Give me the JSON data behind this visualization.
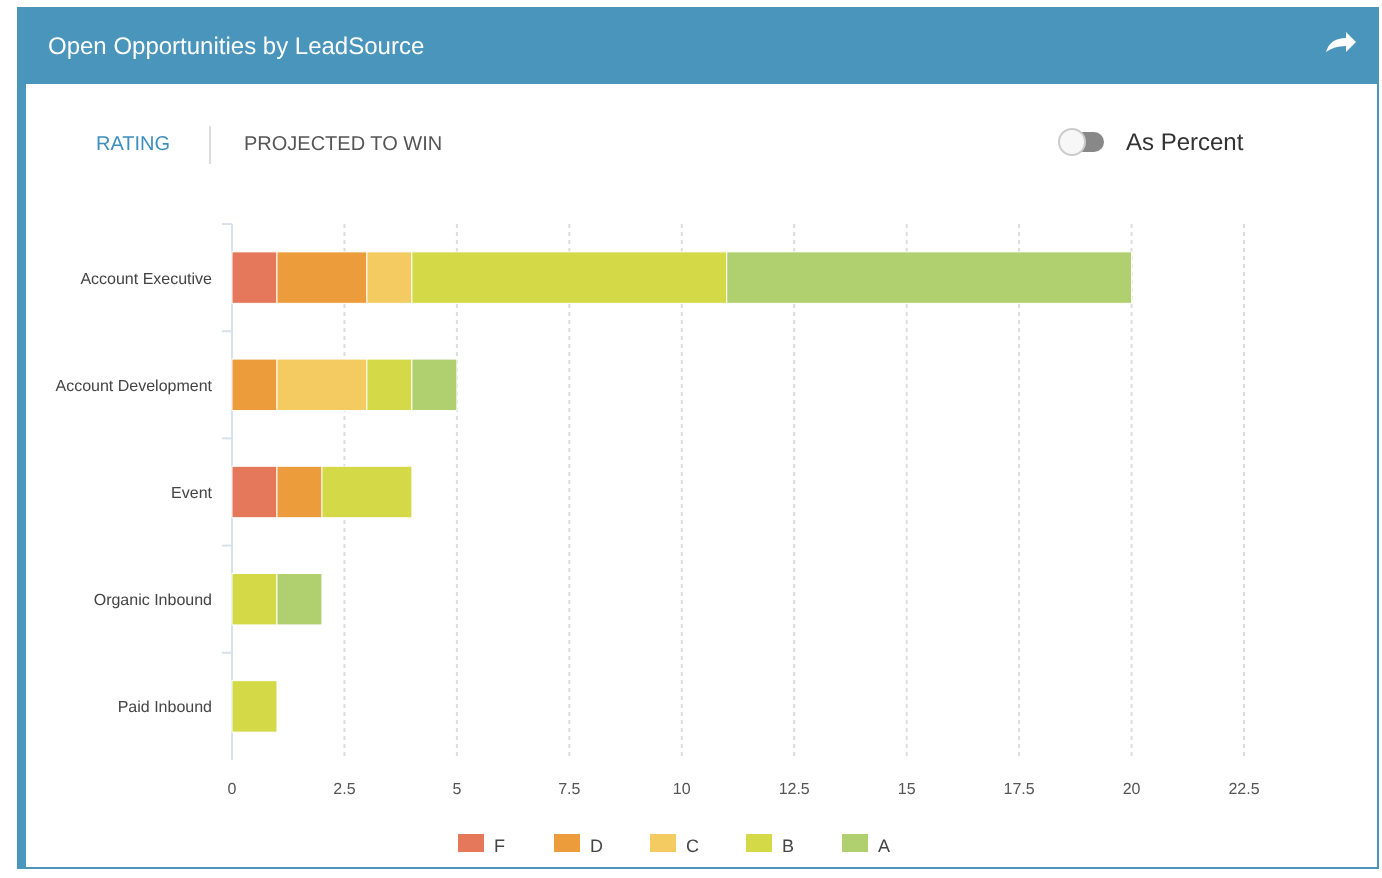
{
  "chart_data": {
    "type": "bar",
    "orientation": "horizontal",
    "stacked": true,
    "title": "Open Opportunities by LeadSource",
    "annotations": [
      "RATING",
      "PROJECTED TO WIN",
      "As Percent"
    ],
    "categories": [
      "Account Executive",
      "Account Development",
      "Event",
      "Organic Inbound",
      "Paid Inbound"
    ],
    "series": [
      {
        "name": "F",
        "color": "#e5775a",
        "values": [
          1,
          0,
          1,
          0,
          0
        ]
      },
      {
        "name": "D",
        "color": "#ec9c3a",
        "values": [
          2,
          1,
          1,
          0,
          0
        ]
      },
      {
        "name": "C",
        "color": "#f4cb60",
        "values": [
          1,
          2,
          0,
          0,
          0
        ]
      },
      {
        "name": "B",
        "color": "#d3d947",
        "values": [
          7,
          1,
          2,
          1,
          1
        ]
      },
      {
        "name": "A",
        "color": "#b0cf6e",
        "values": [
          9,
          1,
          0,
          1,
          0
        ]
      }
    ],
    "xlim": [
      0,
      22.5
    ],
    "xticks": [
      0,
      2.5,
      5,
      7.5,
      10,
      12.5,
      15,
      17.5,
      20,
      22.5
    ],
    "grid": "x",
    "legend": "bottom"
  }
}
